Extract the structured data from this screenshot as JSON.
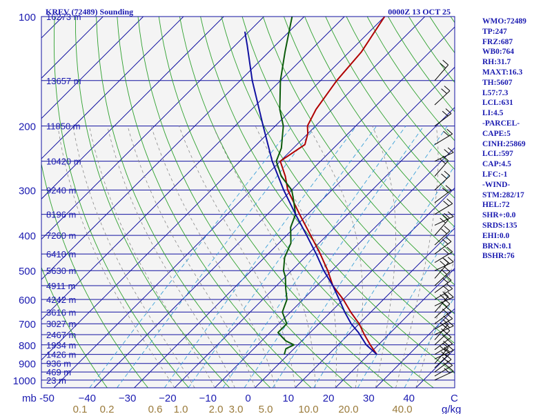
{
  "chart_data": {
    "type": "skew-t",
    "title": "KREV (72489) Sounding",
    "valid_time": "0000Z 13 OCT 25",
    "pressure_levels": [
      100,
      200,
      300,
      400,
      500,
      600,
      700,
      800,
      900,
      1000
    ],
    "pressure_labels": [
      "100",
      "200",
      "300",
      "400",
      "500",
      "600",
      "700",
      "800",
      "900",
      "1000"
    ],
    "pressure_unit": "mb",
    "temperature_ticks": [
      -50,
      -40,
      -30,
      -20,
      -10,
      0,
      10,
      20,
      30,
      40
    ],
    "temperature_labels": [
      "-50",
      "−40",
      "−30",
      "−20",
      "−10",
      "0",
      "10",
      "20",
      "30",
      "40"
    ],
    "temperature_unit": "C",
    "mixing_ratio_ticks": [
      0.1,
      0.2,
      0.6,
      1.0,
      2.0,
      3.0,
      5.0,
      10.0,
      20.0,
      40.0
    ],
    "mixing_ratio_labels": [
      "0.1",
      "0.2",
      "0.6",
      "1.0",
      "2.0",
      "3.0",
      "5.0",
      "10.0",
      "20.0",
      "40.0"
    ],
    "mixing_ratio_unit": "g/kg",
    "height_labels": [
      {
        "p": 100,
        "text": "16273 m"
      },
      {
        "p": 150,
        "text": "13657 m"
      },
      {
        "p": 200,
        "text": "11850 m"
      },
      {
        "p": 250,
        "text": "10420 m"
      },
      {
        "p": 300,
        "text": "9240 m"
      },
      {
        "p": 350,
        "text": "8196 m"
      },
      {
        "p": 400,
        "text": "7260 m"
      },
      {
        "p": 450,
        "text": "6410 m"
      },
      {
        "p": 500,
        "text": "5630 m"
      },
      {
        "p": 550,
        "text": "4911 m"
      },
      {
        "p": 600,
        "text": "4242 m"
      },
      {
        "p": 650,
        "text": "3616 m"
      },
      {
        "p": 700,
        "text": "3027 m"
      },
      {
        "p": 750,
        "text": "2467 m"
      },
      {
        "p": 800,
        "text": "1934 m"
      },
      {
        "p": 850,
        "text": "1426 m"
      },
      {
        "p": 900,
        "text": "936 m"
      },
      {
        "p": 950,
        "text": "469 m"
      },
      {
        "p": 1000,
        "text": "23 m"
      }
    ],
    "series": [
      {
        "key": "temperature",
        "color": "#b00000",
        "points": [
          [
            850,
            22
          ],
          [
            800,
            18
          ],
          [
            750,
            14
          ],
          [
            700,
            10
          ],
          [
            650,
            5
          ],
          [
            600,
            0
          ],
          [
            550,
            -6
          ],
          [
            500,
            -11
          ],
          [
            450,
            -17
          ],
          [
            400,
            -24
          ],
          [
            350,
            -32
          ],
          [
            300,
            -41
          ],
          [
            275,
            -45
          ],
          [
            250,
            -50
          ],
          [
            225,
            -48
          ],
          [
            210,
            -50
          ],
          [
            200,
            -52
          ],
          [
            180,
            -54
          ],
          [
            150,
            -56
          ],
          [
            125,
            -57
          ],
          [
            100,
            -60
          ]
        ]
      },
      {
        "key": "dewpoint",
        "color": "#0a5a0a",
        "points": [
          [
            850,
            -1
          ],
          [
            820,
            -2
          ],
          [
            800,
            -1
          ],
          [
            780,
            -4
          ],
          [
            760,
            -6
          ],
          [
            740,
            -8
          ],
          [
            700,
            -8
          ],
          [
            650,
            -12
          ],
          [
            600,
            -14
          ],
          [
            560,
            -17
          ],
          [
            520,
            -20
          ],
          [
            500,
            -22
          ],
          [
            460,
            -25
          ],
          [
            420,
            -27
          ],
          [
            380,
            -31
          ],
          [
            350,
            -33
          ],
          [
            320,
            -37
          ],
          [
            300,
            -40
          ],
          [
            275,
            -46
          ],
          [
            250,
            -51
          ],
          [
            230,
            -53
          ],
          [
            200,
            -58
          ],
          [
            180,
            -63
          ],
          [
            150,
            -70
          ],
          [
            125,
            -76
          ],
          [
            100,
            -83
          ]
        ]
      },
      {
        "key": "parcel",
        "color": "#1010a0",
        "points": [
          [
            850,
            22
          ],
          [
            800,
            17
          ],
          [
            740,
            12
          ],
          [
            700,
            8
          ],
          [
            650,
            3.5
          ],
          [
            600,
            -1
          ],
          [
            550,
            -6
          ],
          [
            500,
            -12
          ],
          [
            450,
            -18
          ],
          [
            400,
            -25
          ],
          [
            350,
            -33
          ],
          [
            300,
            -42
          ],
          [
            250,
            -52
          ],
          [
            200,
            -63
          ],
          [
            150,
            -77
          ],
          [
            120,
            -87
          ],
          [
            110,
            -91
          ]
        ]
      }
    ],
    "wind_levels": [
      1000,
      975,
      950,
      925,
      900,
      875,
      850,
      825,
      800,
      775,
      750,
      725,
      700,
      675,
      650,
      625,
      600,
      575,
      550,
      525,
      500,
      475,
      450,
      425,
      400,
      375,
      350,
      325,
      300,
      275,
      250,
      225,
      200,
      175,
      150
    ],
    "colors": {
      "isobar": "#1010a0",
      "isotherm": "#1010a0",
      "dry_adiabat": "#2da02d",
      "moist_adiabat": "#888888",
      "mixing_ratio": "#3aa0d8",
      "wind_barb": "#000000",
      "label": "#1a1ab0",
      "background": "#f4f4f4"
    }
  },
  "stats": [
    "WMO:72489",
    "TP:247",
    "FRZ:687",
    "WB0:764",
    "RH:31.7",
    "MAXT:16.3",
    "TH:5607",
    "L57:7.3",
    "LCL:631",
    "LI:4.5",
    "-PARCEL-",
    "CAPE:5",
    "CINH:25869",
    "LCL:597",
    "CAP:4.5",
    "LFC:-1",
    "-WIND-",
    "STM:282/17",
    "HEL:72",
    "SHR+:0.0",
    "SRDS:135",
    "EHI:0.0",
    "BRN:0.1",
    "BSHR:76"
  ]
}
